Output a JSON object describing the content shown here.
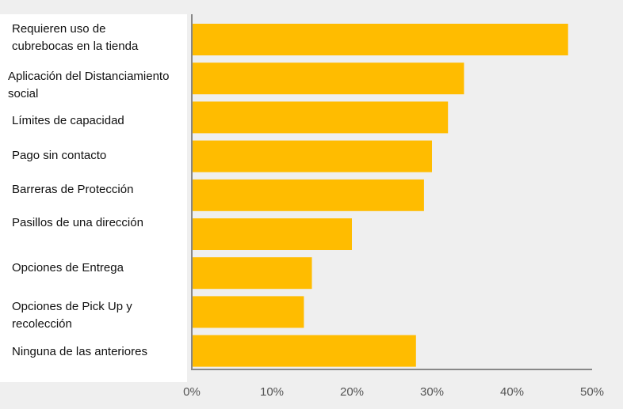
{
  "chart_data": {
    "type": "bar",
    "orientation": "horizontal",
    "categories": [
      "Requieren uso de cubrebocas en la tienda",
      "Aplicación del Distanciamiento social",
      "Límites de capacidad",
      "Pago sin contacto",
      "Barreras de Protección",
      "Pasillos de una dirección",
      "Opciones de Entrega",
      "Opciones de Pick Up y recolección",
      "Ninguna de las anteriores"
    ],
    "values": [
      47,
      34,
      32,
      30,
      29,
      20,
      15,
      14,
      28
    ],
    "xlim": [
      0,
      50
    ],
    "xticks": [
      "0%",
      "10%",
      "20%",
      "30%",
      "40%",
      "50%"
    ],
    "bar_color": "#FFBC00",
    "axis_color": "#888888",
    "grid": false,
    "legend": "none"
  }
}
